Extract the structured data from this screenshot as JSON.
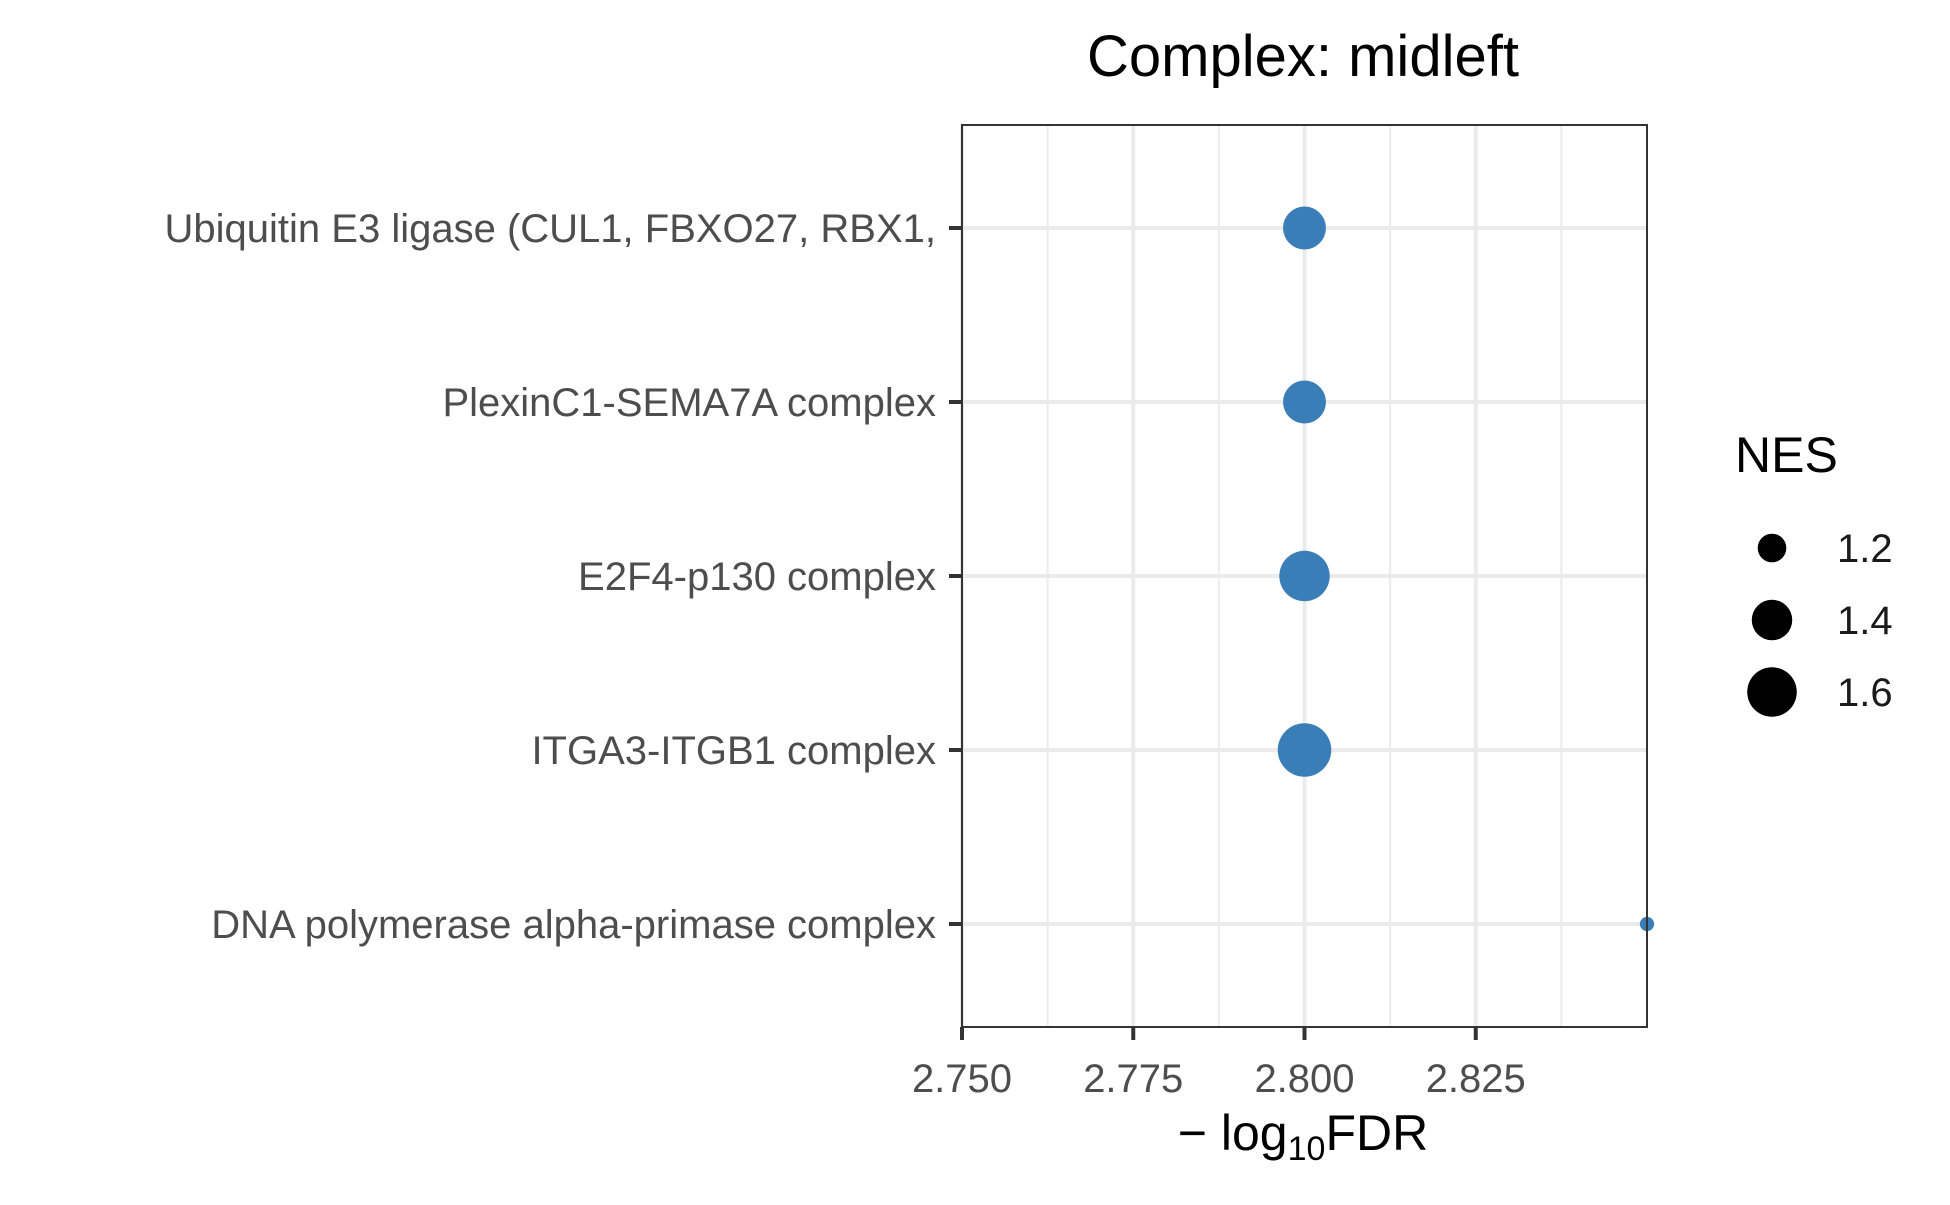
{
  "chart_data": {
    "type": "scatter",
    "title": "Complex: midleft",
    "xlabel": {
      "prefix": "− log",
      "subscript": "10",
      "suffix": "FDR"
    },
    "ylabel": "",
    "xlim": [
      2.75,
      2.85
    ],
    "xticks": [
      "2.750",
      "2.775",
      "2.800",
      "2.825"
    ],
    "xtick_values": [
      2.75,
      2.775,
      2.8,
      2.825
    ],
    "categories": [
      "Ubiquitin E3 ligase (CUL1, FBXO27, RBX1,",
      "PlexinC1-SEMA7A complex",
      "E2F4-p130 complex",
      "ITGA3-ITGB1 complex",
      "DNA polymerase alpha-primase complex"
    ],
    "points": [
      {
        "category": "Ubiquitin E3 ligase (CUL1, FBXO27, RBX1,",
        "x": 2.8,
        "nes": 1.45
      },
      {
        "category": "PlexinC1-SEMA7A complex",
        "x": 2.8,
        "nes": 1.45
      },
      {
        "category": "E2F4-p130 complex",
        "x": 2.8,
        "nes": 1.62
      },
      {
        "category": "ITGA3-ITGB1 complex",
        "x": 2.8,
        "nes": 1.7
      },
      {
        "category": "DNA polymerase alpha-primase complex",
        "x": 2.85,
        "nes": 1.05
      }
    ],
    "point_color": "#3A7EB8",
    "grid": true,
    "legend": {
      "title": "NES",
      "position": "right",
      "entries": [
        {
          "label": "1.2",
          "value": 1.2
        },
        {
          "label": "1.4",
          "value": 1.4
        },
        {
          "label": "1.6",
          "value": 1.6
        }
      ]
    }
  }
}
